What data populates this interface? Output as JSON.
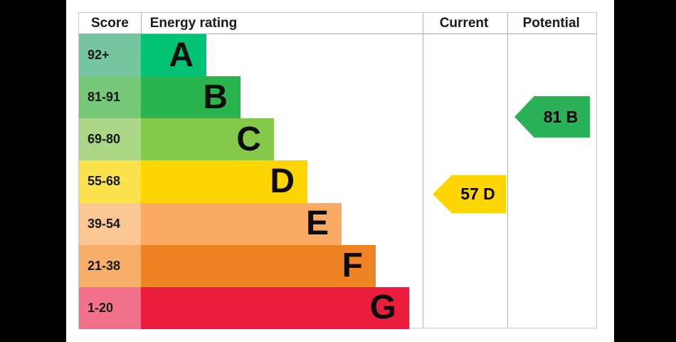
{
  "table": {
    "headers": {
      "score": "Score",
      "energy_rating": "Energy rating",
      "current": "Current",
      "potential": "Potential"
    }
  },
  "bands": [
    {
      "letter": "A",
      "score_range": "92+",
      "bar_color": "#00c373",
      "score_bg": "#76c7a1"
    },
    {
      "letter": "B",
      "score_range": "81-91",
      "bar_color": "#2ab44d",
      "score_bg": "#76c878"
    },
    {
      "letter": "C",
      "score_range": "69-80",
      "bar_color": "#84c94a",
      "score_bg": "#aad685"
    },
    {
      "letter": "D",
      "score_range": "55-68",
      "bar_color": "#ffd500",
      "score_bg": "#fce34e"
    },
    {
      "letter": "E",
      "score_range": "39-54",
      "bar_color": "#fbab63",
      "score_bg": "#fcc794"
    },
    {
      "letter": "F",
      "score_range": "21-38",
      "bar_color": "#ee8423",
      "score_bg": "#f7ae68"
    },
    {
      "letter": "G",
      "score_range": "1-20",
      "bar_color": "#ea1d3d",
      "score_bg": "#f1728a"
    }
  ],
  "current": {
    "label": "57 D",
    "score": 57,
    "band": "D",
    "color": "#ffd500"
  },
  "potential": {
    "label": "81 B",
    "score": 81,
    "band": "B",
    "color": "#2bb157"
  },
  "chart_data": {
    "type": "bar",
    "title": "Energy rating",
    "columns": [
      "Score",
      "Energy rating",
      "Current",
      "Potential"
    ],
    "categories": [
      "A",
      "B",
      "C",
      "D",
      "E",
      "F",
      "G"
    ],
    "score_ranges": [
      "92+",
      "81-91",
      "69-80",
      "55-68",
      "39-54",
      "21-38",
      "1-20"
    ],
    "band_colors": [
      "#00c373",
      "#2ab44d",
      "#84c94a",
      "#ffd500",
      "#fbab63",
      "#ee8423",
      "#ea1d3d"
    ],
    "current": {
      "score": 57,
      "band": "D"
    },
    "potential": {
      "score": 81,
      "band": "B"
    },
    "legend_position": "none",
    "grid": false
  }
}
